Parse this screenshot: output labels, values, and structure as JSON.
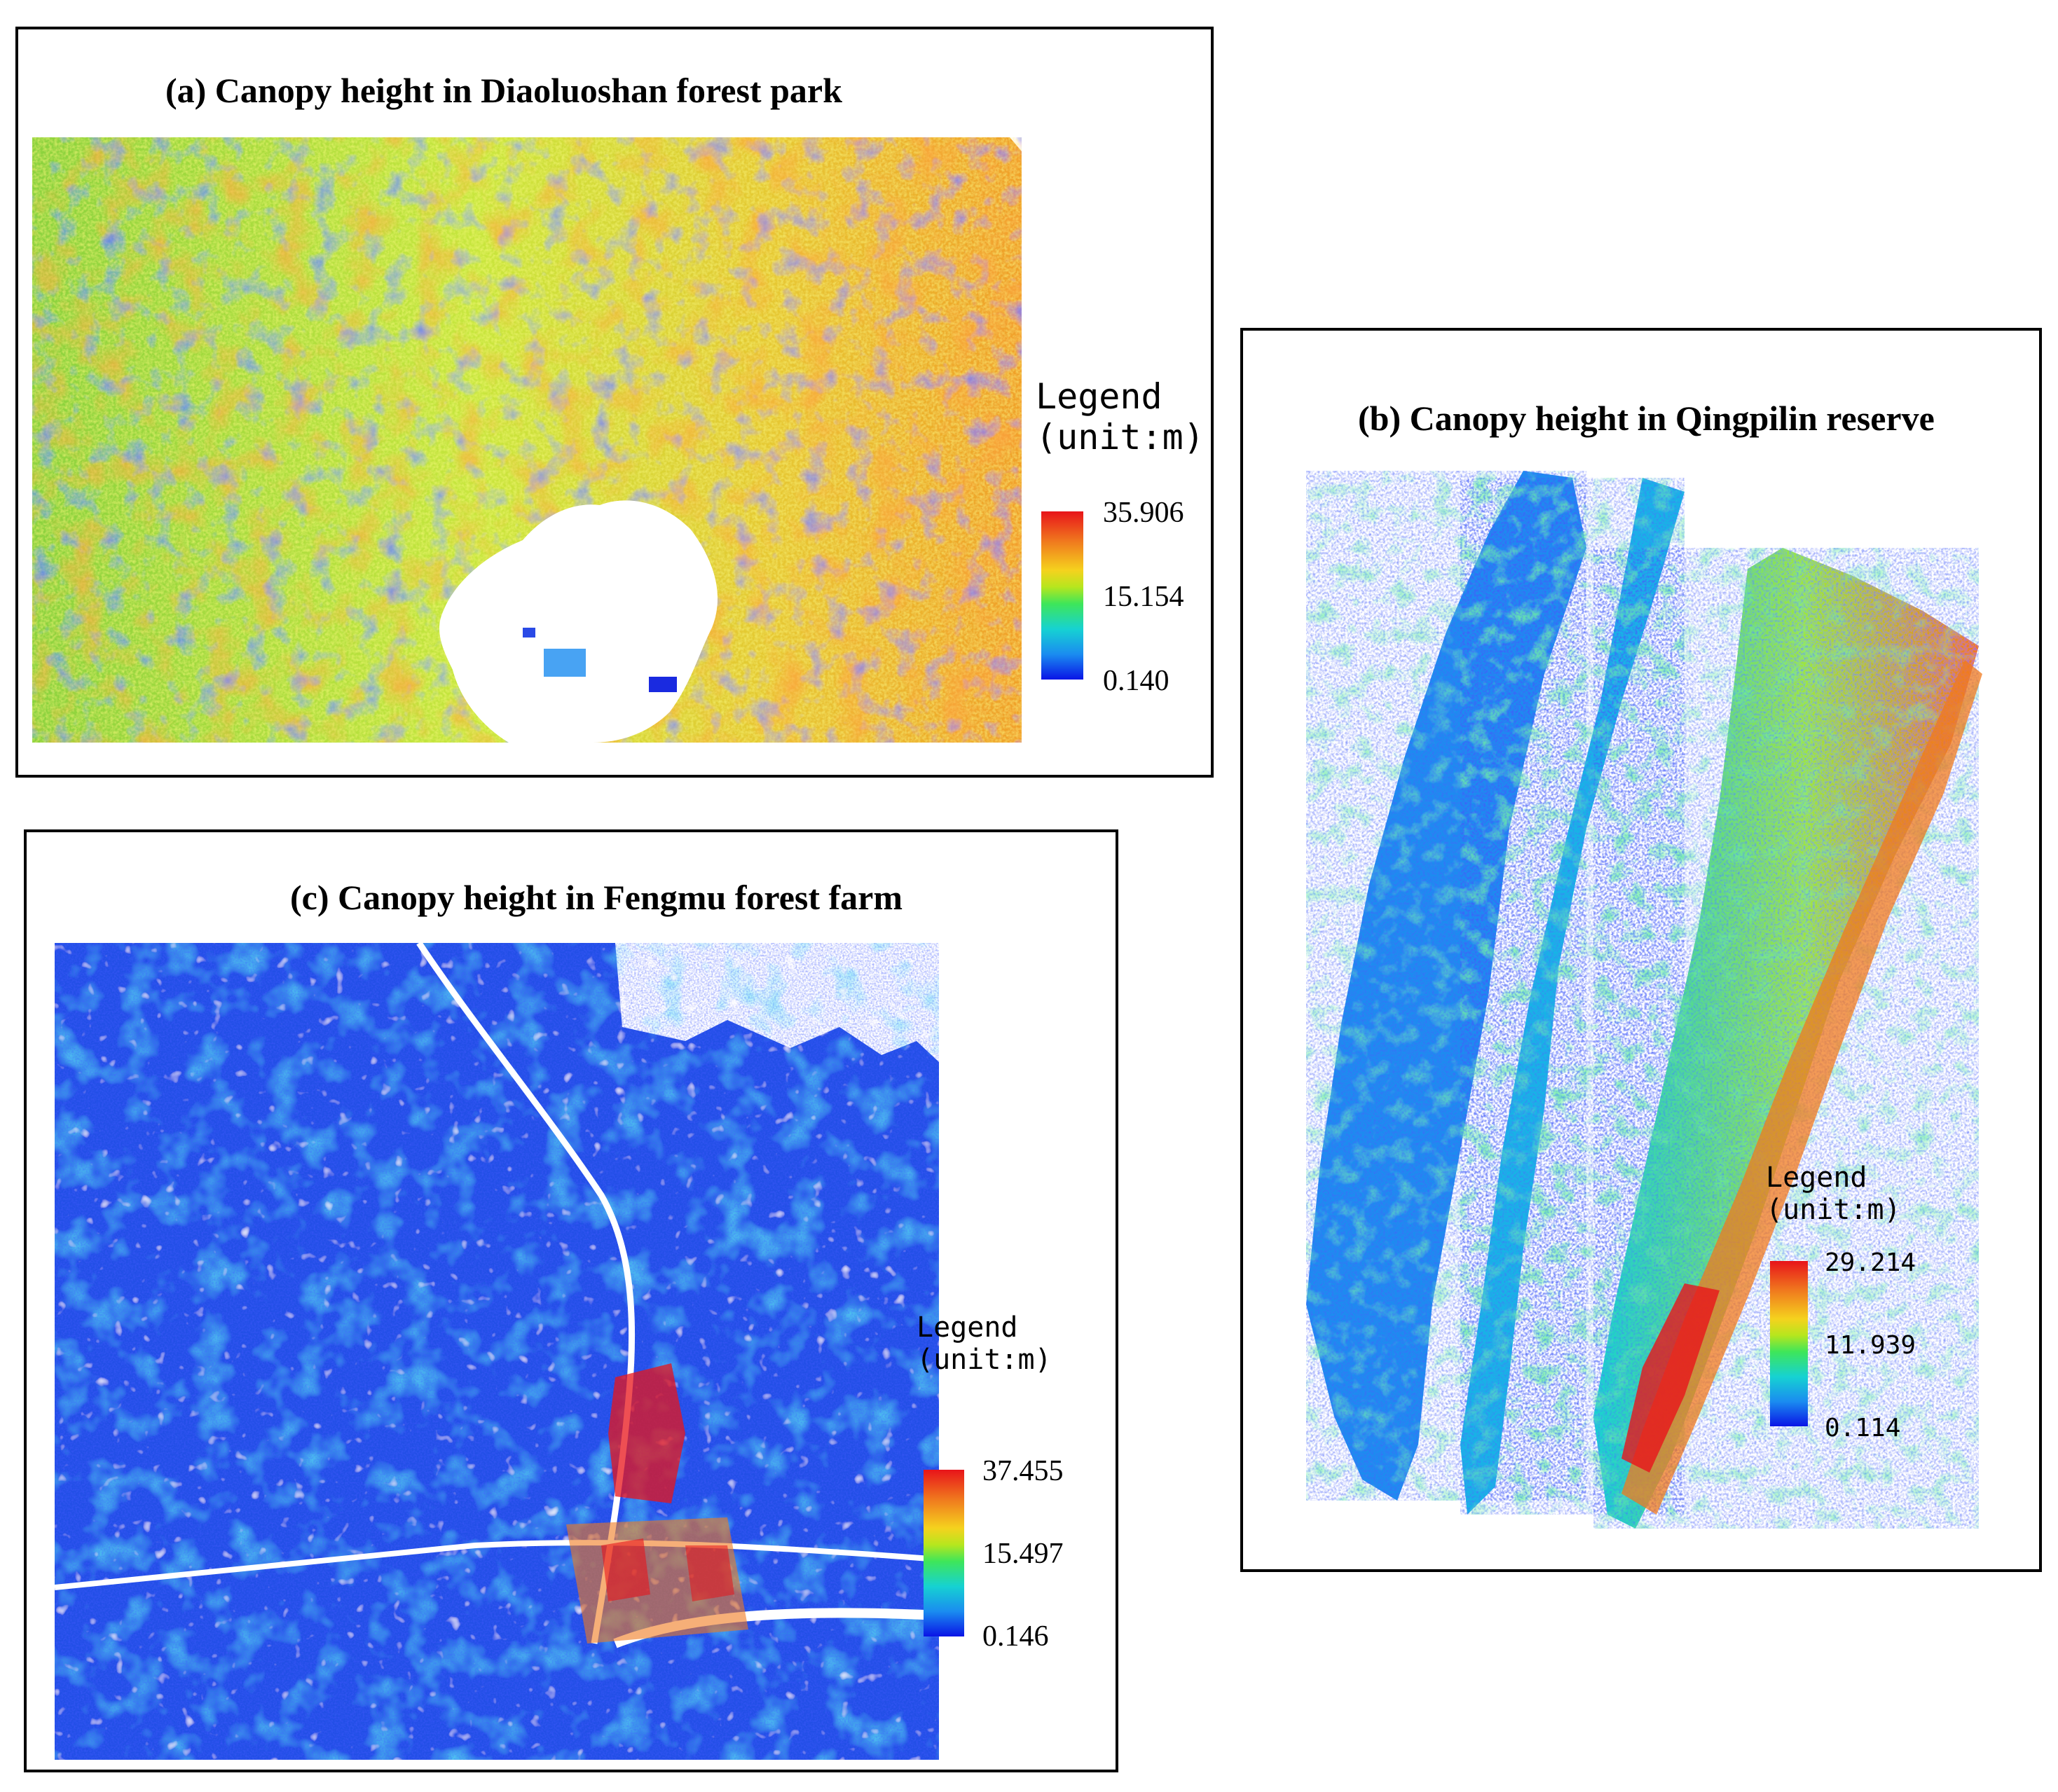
{
  "panels": {
    "a": {
      "title": "(a) Canopy height in Diaoluoshan forest park",
      "legend_title": "Legend",
      "legend_unit": "(unit:m)",
      "max": "35.906",
      "mid": "15.154",
      "min": "0.140"
    },
    "b": {
      "title": "(b) Canopy height in Qingpilin reserve",
      "legend_title": "Legend",
      "legend_unit": "(unit:m)",
      "max": "29.214",
      "mid": "11.939",
      "min": "0.114"
    },
    "c": {
      "title": "(c) Canopy height in Fengmu forest farm",
      "legend_title": "Legend",
      "legend_unit": "(unit:m)",
      "max": "37.455",
      "mid": "15.497",
      "min": "0.146"
    }
  },
  "colors": {
    "high": "#e8141a",
    "mid_high": "#f5d21e",
    "mid": "#3ee65a",
    "low_mid": "#16d2d2",
    "low": "#0a14e6",
    "nodata": "#ffffff"
  }
}
